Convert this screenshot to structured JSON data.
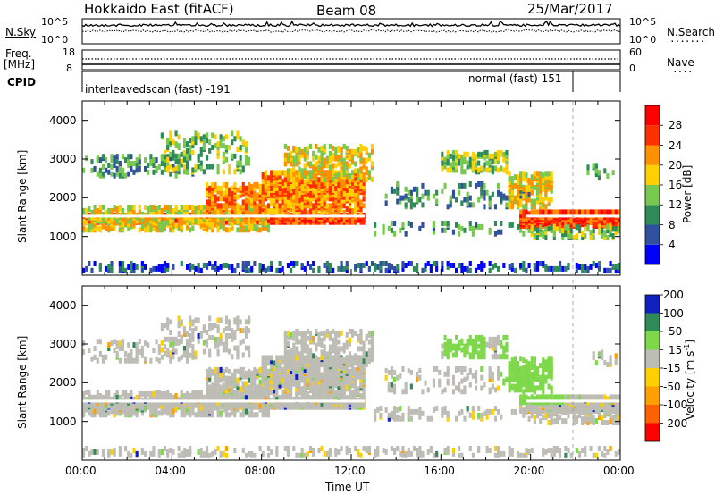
{
  "header": {
    "radar": "Hokkaido East (fitACF)",
    "beam": "Beam 08",
    "date": "25/Mar/2017"
  },
  "status_panel": {
    "left_label": "N.Sky",
    "right_label": "N.Search",
    "left_ticks": [
      "10^5",
      "10^0"
    ],
    "right_ticks": [
      "10^5",
      "10^0"
    ]
  },
  "freq_panel": {
    "left_label_1": "Freq.",
    "left_label_2": "[MHz]",
    "right_label": "Nave",
    "left_ticks": [
      "18",
      "8"
    ],
    "right_ticks": [
      "60",
      "0"
    ]
  },
  "cpid_panel": {
    "label": "CPID",
    "segment_1": "interleavedscan (fast) -191",
    "segment_2": "normal (fast) 151"
  },
  "colors": {
    "power": [
      "#0000ff",
      "#3050a0",
      "#2e8b57",
      "#78c850",
      "#ffd000",
      "#ff9000",
      "#ff3000",
      "#ff0000"
    ],
    "velocity": [
      "#ff0000",
      "#ff6000",
      "#ff9f00",
      "#ffd000",
      "#bdbdb5",
      "#7ed84a",
      "#2e8b57",
      "#1020c0"
    ]
  },
  "chart_data": [
    {
      "type": "heatmap",
      "title": "Power",
      "xlabel": "",
      "ylabel": "Slant Range [km]",
      "xlim": [
        "00:00",
        "24:00"
      ],
      "ylim": [
        0,
        4500
      ],
      "y_ticks": [
        1000,
        2000,
        3000,
        4000
      ],
      "colorbar": {
        "label": "Power [dB]",
        "ticks": [
          4,
          8,
          12,
          16,
          20,
          24,
          28
        ],
        "range": [
          0,
          32
        ]
      },
      "series": [
        {
          "name": "",
          "x": [
            0,
            12.6
          ],
          "y": [
            1400,
            1400
          ],
          "value": 26
        },
        {
          "name": "",
          "x": [
            19.8,
            24
          ],
          "y": [
            1400,
            1400
          ],
          "value": 26
        }
      ]
    },
    {
      "type": "heatmap",
      "title": "Velocity",
      "xlabel": "Time UT",
      "ylabel": "Slant Range [km]",
      "xlim": [
        "00:00",
        "24:00"
      ],
      "ylim": [
        0,
        4500
      ],
      "x_ticks": [
        "00:00",
        "04:00",
        "08:00",
        "12:00",
        "16:00",
        "20:00",
        "00:00"
      ],
      "y_ticks": [
        1000,
        2000,
        3000,
        4000
      ],
      "colorbar": {
        "label": "Velocity [m s^-1]",
        "ticks": [
          -200,
          -100,
          -50,
          -15,
          15,
          50,
          100,
          200
        ]
      }
    }
  ]
}
